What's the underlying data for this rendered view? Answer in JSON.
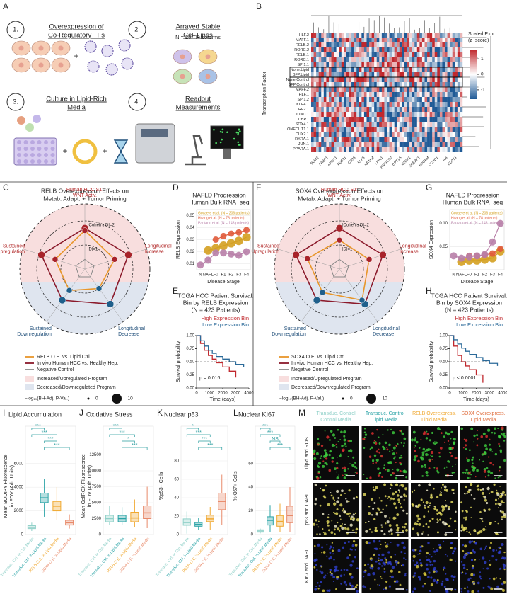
{
  "panel_a": {
    "label": "A",
    "steps": [
      {
        "number": "1.",
        "title": [
          "Overexpression of",
          "Co-Regulatory TFs"
        ]
      },
      {
        "number": "2.",
        "title": [
          "Arrayed Stable",
          "Cell Lines"
        ]
      },
      {
        "number": "3.",
        "title": [
          "Culture in Lipid-Rich",
          "Media"
        ]
      },
      {
        "number": "4.",
        "title": [
          "Readout",
          "Measurements"
        ]
      }
    ],
    "note": "N = 20 TF isoforms"
  },
  "panel_b": {
    "label": "B",
    "y_title": "Transcription Factor",
    "rows": [
      "HLF.2",
      "MAFF.1",
      "RELB.2",
      "RORC.2",
      "RELB.1",
      "RORC.1",
      "SPI1.1",
      "None.Lipid",
      "BFP.Lipid",
      "None.Control",
      "BFP.Control",
      "MAFF.2",
      "HLF.1",
      "SPI1.2",
      "KLF4.1",
      "IRF2.1",
      "JUND.1",
      "DBP.1",
      "SOX4.1",
      "ONECUT1.1",
      "CUX2.1",
      "RXRA.1",
      "JUN.1",
      "PPARA.1"
    ],
    "genes": [
      "PLIN2",
      "FABP1",
      "APOA1",
      "FGF21",
      "CD36",
      "KLF6",
      "NR1H4",
      "LPIN1",
      "HMGCS2",
      "CPT1A",
      "ACOX1",
      "SREBF1",
      "EPCAM",
      "CCND1",
      "IL6",
      "CD274"
    ],
    "legend_title": [
      "Scaled Expr.",
      "(z−score)"
    ],
    "legend_lim": [
      -1.6,
      1.6
    ],
    "legend_ticks": [
      1,
      0,
      -1
    ]
  },
  "panel_c": {
    "label": "C",
    "title": [
      "RELB Overexpression Effects on",
      "Metab. Adapt. + Tumor Priming"
    ],
    "axes": [
      [
        "Human HCC S1:",
        "WNT Activ."
      ],
      [
        "Longitudinal",
        "Increase"
      ],
      [
        "Longitudinal",
        "Decrease"
      ],
      [
        "Sustained",
        "Downregulation"
      ],
      [
        "Sustained",
        "Upregulation"
      ]
    ],
    "ring_labels": [
      "|Cohen's D|=2",
      "|D|=1"
    ],
    "ring_values": [
      2,
      1
    ],
    "series": [
      {
        "name": "RELB O.E. vs. Lipid Ctrl.",
        "color": "#e8962a",
        "values": [
          1.6,
          1.3,
          1.0,
          1.1,
          1.3
        ]
      },
      {
        "name": "In vivo Human HCC vs. Healthy Hep.",
        "color": "#8b1a2b",
        "values": [
          1.7,
          1.9,
          1.8,
          1.6,
          1.9
        ]
      },
      {
        "name": "Negative Control",
        "color": "#888888",
        "values": [
          0.4,
          0.4,
          0.4,
          0.4,
          0.4
        ]
      }
    ],
    "regions": [
      "Increased/Upregulated Program",
      "Decreased/Downregulated Program"
    ],
    "size_title": "−log₁₀(BH-Adj. P-Val.)",
    "size_legend": [
      0,
      10
    ]
  },
  "panel_d": {
    "label": "D",
    "title": [
      "NAFLD Progression",
      "Human Bulk RNA−seq"
    ],
    "y_title": "RELB Expression",
    "x_title": "Disease Stage",
    "categories": [
      "N",
      "NAFL",
      "F0",
      "F1",
      "F2",
      "F3",
      "F4"
    ],
    "ylim": [
      0.005,
      0.055
    ],
    "yticks": [
      0.01,
      0.02,
      0.03,
      0.04,
      0.05
    ],
    "series": [
      {
        "name": "Govaere et al. (N = 206 patients)",
        "color": "#d4a020",
        "values": [
          null,
          0.021,
          0.023,
          0.025,
          0.027,
          0.029,
          0.032
        ]
      },
      {
        "name": "Hoang et al. (N = 78 patients)",
        "color": "#e05a3a",
        "values": [
          null,
          null,
          0.03,
          0.033,
          0.035,
          0.036,
          0.038
        ]
      },
      {
        "name": "Pantano et al. (N = 143 patients)",
        "color": "#b87fa8",
        "values": [
          0.009,
          0.013,
          0.019,
          0.019,
          0.018,
          0.017,
          0.02
        ]
      }
    ]
  },
  "panel_e": {
    "label": "E",
    "title": [
      "TCGA HCC Patient Survival:",
      "Bin by RELB Expression",
      "(N = 423 Patients)"
    ],
    "y_title": "Survival probability",
    "x_title": "Time (days)",
    "p_text": "p = 0.016",
    "xlim": [
      0,
      4000
    ],
    "xticks": [
      0,
      1000,
      2000,
      3000,
      4000
    ],
    "ylim": [
      0,
      1
    ],
    "yticks": [
      {
        "value": 0,
        "label": "0.00"
      },
      {
        "value": 0.25,
        "label": "0.25"
      },
      {
        "value": 0.5,
        "label": "0.50"
      },
      {
        "value": 0.75,
        "label": "0.75"
      },
      {
        "value": 1,
        "label": "1.00"
      }
    ],
    "series": [
      {
        "name": "High Expression Bin",
        "color": "#c0282d",
        "times": [
          0,
          300,
          600,
          900,
          1200,
          1500,
          2000,
          2500,
          3000
        ],
        "survival": [
          1,
          0.85,
          0.72,
          0.62,
          0.55,
          0.48,
          0.4,
          0.32,
          0.2
        ]
      },
      {
        "name": "Low Expression Bin",
        "color": "#2b6a99",
        "times": [
          0,
          300,
          600,
          900,
          1200,
          1500,
          2000,
          2500,
          3000,
          3600
        ],
        "survival": [
          1,
          0.9,
          0.8,
          0.72,
          0.66,
          0.6,
          0.55,
          0.5,
          0.45,
          0.4
        ]
      }
    ]
  },
  "panel_f": {
    "label": "F",
    "title": [
      "SOX4 Overexpression Effects on",
      "Metab. Adapt. + Tumor Priming"
    ],
    "axes": [
      [
        "Human HCC S1:",
        "WNT Activ."
      ],
      [
        "Longitudinal",
        "Increase"
      ],
      [
        "Longitudinal",
        "Decrease"
      ],
      [
        "Sustained",
        "Downregulation"
      ],
      [
        "Sustained",
        "Upregulation"
      ]
    ],
    "ring_labels": [
      "|Cohen's D|=2",
      "|D|=1"
    ],
    "ring_values": [
      2,
      1
    ],
    "series": [
      {
        "name": "SOX4 O.E. vs. Lipid Ctrl.",
        "color": "#e8962a",
        "values": [
          1.2,
          1.3,
          1.6,
          1.2,
          1.4
        ]
      },
      {
        "name": "In vivo Human HCC vs. Healthy Hep.",
        "color": "#8b1a2b",
        "values": [
          1.7,
          1.9,
          1.8,
          1.6,
          1.9
        ]
      },
      {
        "name": "Negative Control",
        "color": "#888888",
        "values": [
          0.4,
          0.4,
          0.4,
          0.4,
          0.4
        ]
      }
    ],
    "regions": [
      "Increased/Upregulated Program",
      "Decreased/Downregulated Program"
    ],
    "size_title": "−log₁₀(BH-Adj. P-Val.)",
    "size_legend": [
      0,
      10
    ]
  },
  "panel_g": {
    "label": "G",
    "title": [
      "NAFLD Progression",
      "Human Bulk RNA−seq"
    ],
    "y_title": "SOX4 Expression",
    "x_title": "Disease Stage",
    "categories": [
      "N",
      "NAFL",
      "F0",
      "F1",
      "F2",
      "F3",
      "F4"
    ],
    "ylim": [
      0,
      0.13
    ],
    "yticks": [
      0.05,
      {
        "value": 0.1,
        "label": "0.10"
      }
    ],
    "series": [
      {
        "name": "Govaere et al. (N = 206 patients)",
        "color": "#d4a020",
        "values": [
          null,
          0.017,
          0.02,
          0.02,
          0.022,
          0.025,
          0.04
        ]
      },
      {
        "name": "Hoang et al. (N = 78 patients)",
        "color": "#e05a3a",
        "values": [
          null,
          null,
          0.03,
          0.03,
          0.032,
          0.035,
          0.045
        ]
      },
      {
        "name": "Pantano et al. (N = 143 patients)",
        "color": "#b87fa8",
        "values": [
          0.03,
          0.025,
          0.028,
          0.03,
          0.033,
          0.06,
          0.1
        ]
      }
    ]
  },
  "panel_h": {
    "label": "H",
    "title": [
      "TCGA HCC Patient Survival:",
      "Bin by SOX4 Expression",
      "(N = 423 Patients)"
    ],
    "y_title": "Survival probability",
    "x_title": "Time (days)",
    "p_text": "p < 0.0001",
    "xlim": [
      0,
      4000
    ],
    "xticks": [
      0,
      1000,
      2000,
      3000,
      4000
    ],
    "ylim": [
      0,
      1
    ],
    "yticks": [
      {
        "value": 0,
        "label": "0.00"
      },
      {
        "value": 0.25,
        "label": "0.25"
      },
      {
        "value": 0.5,
        "label": "0.50"
      },
      {
        "value": 0.75,
        "label": "0.75"
      },
      {
        "value": 1,
        "label": "1.00"
      }
    ],
    "series": [
      {
        "name": "High Expression Bin",
        "color": "#c0282d",
        "times": [
          0,
          300,
          600,
          900,
          1200,
          1500,
          2000,
          2500
        ],
        "survival": [
          1,
          0.8,
          0.62,
          0.5,
          0.42,
          0.35,
          0.25,
          0.1
        ]
      },
      {
        "name": "Low Expression Bin",
        "color": "#2b6a99",
        "times": [
          0,
          300,
          600,
          900,
          1200,
          1500,
          2000,
          2500,
          3000,
          3600
        ],
        "survival": [
          1,
          0.92,
          0.84,
          0.76,
          0.7,
          0.64,
          0.58,
          0.52,
          0.47,
          0.42
        ]
      }
    ]
  },
  "panel_i": {
    "label": "I",
    "title": "Lipid Accumulation",
    "y_title": [
      "Mean BODIPY Fluorescence",
      "in FOV (Arb. Units)"
    ],
    "ylim": [
      0,
      7000
    ],
    "yticks": [
      0,
      2000,
      4000,
      6000
    ],
    "sig": [
      "***",
      "***",
      "***",
      "***"
    ],
    "groups": [
      {
        "name": "Transduc. Ctrl. in Ctrl. Media",
        "color": "#8fd0c8",
        "lo": 300,
        "q1": 500,
        "median": 600,
        "q3": 750,
        "hi": 1000
      },
      {
        "name": "Transduc. Ctrl. in Lipid Media",
        "color": "#2aa3a6",
        "lo": 1500,
        "q1": 2700,
        "median": 3100,
        "q3": 3500,
        "hi": 4700
      },
      {
        "name": "RELB O.E. in Lipid Media",
        "color": "#f0a830",
        "lo": 1200,
        "q1": 2000,
        "median": 2400,
        "q3": 2800,
        "hi": 4000
      },
      {
        "name": "SOX4 O.E. in Lipid Media",
        "color": "#e88a6a",
        "lo": 500,
        "q1": 800,
        "median": 1000,
        "q3": 1200,
        "hi": 1700
      }
    ]
  },
  "panel_j": {
    "label": "J",
    "title": "Oxidative Stress",
    "y_title": [
      "Mean CellROX Fluorescence",
      "in FOV (Arb. Units)"
    ],
    "ylim": [
      0,
      13000
    ],
    "yticks": [
      0,
      2500,
      5000,
      7500,
      10000,
      12500
    ],
    "sig": [
      "***",
      "***",
      "*",
      "***"
    ],
    "groups": [
      {
        "name": "Transduc. Ctrl. in Ctrl. Media",
        "color": "#8fd0c8",
        "lo": 1500,
        "q1": 2000,
        "median": 2500,
        "q3": 3000,
        "hi": 4500
      },
      {
        "name": "Transduc. Ctrl. in Lipid Media",
        "color": "#2aa3a6",
        "lo": 1500,
        "q1": 2000,
        "median": 2500,
        "q3": 3000,
        "hi": 4300
      },
      {
        "name": "RELB O.E. in Lipid Media",
        "color": "#f0a830",
        "lo": 1200,
        "q1": 2000,
        "median": 2600,
        "q3": 3500,
        "hi": 5500
      },
      {
        "name": "SOX4 O.E. in Lipid Media",
        "color": "#e88a6a",
        "lo": 1000,
        "q1": 2500,
        "median": 3400,
        "q3": 4500,
        "hi": 7500
      }
    ]
  },
  "panel_k": {
    "label": "K",
    "title": "Nuclear p53",
    "y_title": [
      "%p53+ Cells"
    ],
    "ylim": [
      0,
      90
    ],
    "yticks": [
      0,
      20,
      40,
      60,
      80
    ],
    "sig": [
      "*",
      "***",
      "***",
      "***"
    ],
    "groups": [
      {
        "name": "Transduc. Ctrl. in Ctrl. Media",
        "color": "#8fd0c8",
        "lo": 1,
        "q1": 10,
        "median": 13,
        "q3": 17,
        "hi": 25
      },
      {
        "name": "Transduc. Ctrl. in Lipid Media",
        "color": "#2aa3a6",
        "lo": 5,
        "q1": 9,
        "median": 11,
        "q3": 13,
        "hi": 18
      },
      {
        "name": "RELB O.E. in Lipid Media",
        "color": "#f0a830",
        "lo": 5,
        "q1": 14,
        "median": 17,
        "q3": 21,
        "hi": 30
      },
      {
        "name": "SOX4 O.E. in Lipid Media",
        "color": "#e88a6a",
        "lo": 10,
        "q1": 27,
        "median": 36,
        "q3": 45,
        "hi": 65
      }
    ]
  },
  "panel_l": {
    "label": "L",
    "title": "Nuclear KI67",
    "y_title": [
      "%KI67+ Cells"
    ],
    "ylim": [
      0,
      70
    ],
    "yticks": [
      0,
      20,
      40,
      60
    ],
    "sig": [
      "***",
      "***",
      "NS",
      "***"
    ],
    "groups": [
      {
        "name": "Transduc. Ctrl. in Ctrl. Media",
        "color": "#8fd0c8",
        "lo": 1,
        "q1": 2,
        "median": 3,
        "q3": 4,
        "hi": 5
      },
      {
        "name": "Transduc. Ctrl. in Lipid Media",
        "color": "#2aa3a6",
        "lo": 2,
        "q1": 8,
        "median": 12,
        "q3": 15,
        "hi": 25
      },
      {
        "name": "RELB O.E. in Lipid Media",
        "color": "#f0a830",
        "lo": 2,
        "q1": 7,
        "median": 11,
        "q3": 16,
        "hi": 26
      },
      {
        "name": "SOX4 O.E. in Lipid Media",
        "color": "#e88a6a",
        "lo": 2,
        "q1": 10,
        "median": 16,
        "q3": 24,
        "hi": 40
      }
    ]
  },
  "panel_m": {
    "label": "M",
    "columns": [
      {
        "lines": [
          "Transduc. Control",
          "Control Media"
        ],
        "color": "#8fd0c8"
      },
      {
        "lines": [
          "Transduc. Control",
          "Lipid Media"
        ],
        "color": "#2aa3a6"
      },
      {
        "lines": [
          "RELB Overexpress.",
          "Lipid Media"
        ],
        "color": "#f0a830"
      },
      {
        "lines": [
          "SOX4 Overexpress.",
          "Lipid Media"
        ],
        "color": "#e07040"
      }
    ],
    "rows": [
      "Lipid and ROS",
      "p53 and DAPI",
      "KI67 and DAPI"
    ]
  }
}
